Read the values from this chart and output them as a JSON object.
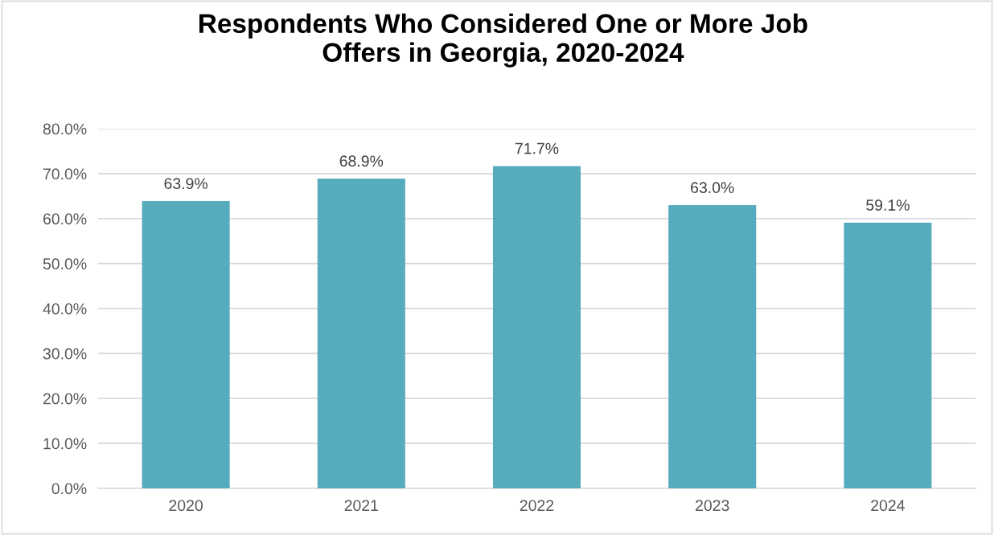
{
  "chart_data": {
    "type": "bar",
    "title": "Respondents Who Considered One or More Job\nOffers in Georgia, 2020-2024",
    "categories": [
      "2020",
      "2021",
      "2022",
      "2023",
      "2024"
    ],
    "values": [
      63.9,
      68.9,
      71.7,
      63.0,
      59.1
    ],
    "value_labels": [
      "63.9%",
      "68.9%",
      "71.7%",
      "63.0%",
      "59.1%"
    ],
    "color": "#56acbd",
    "ylim": [
      0,
      80
    ],
    "yticks": [
      {
        "value": 0,
        "label": "0.0%"
      },
      {
        "value": 10,
        "label": "10.0%"
      },
      {
        "value": 20,
        "label": "20.0%"
      },
      {
        "value": 30,
        "label": "30.0%"
      },
      {
        "value": 40,
        "label": "40.0%"
      },
      {
        "value": 50,
        "label": "50.0%"
      },
      {
        "value": 60,
        "label": "60.0%"
      },
      {
        "value": 70,
        "label": "70.0%"
      },
      {
        "value": 80,
        "label": "80.0%"
      }
    ],
    "grid": "y",
    "legend": false
  }
}
